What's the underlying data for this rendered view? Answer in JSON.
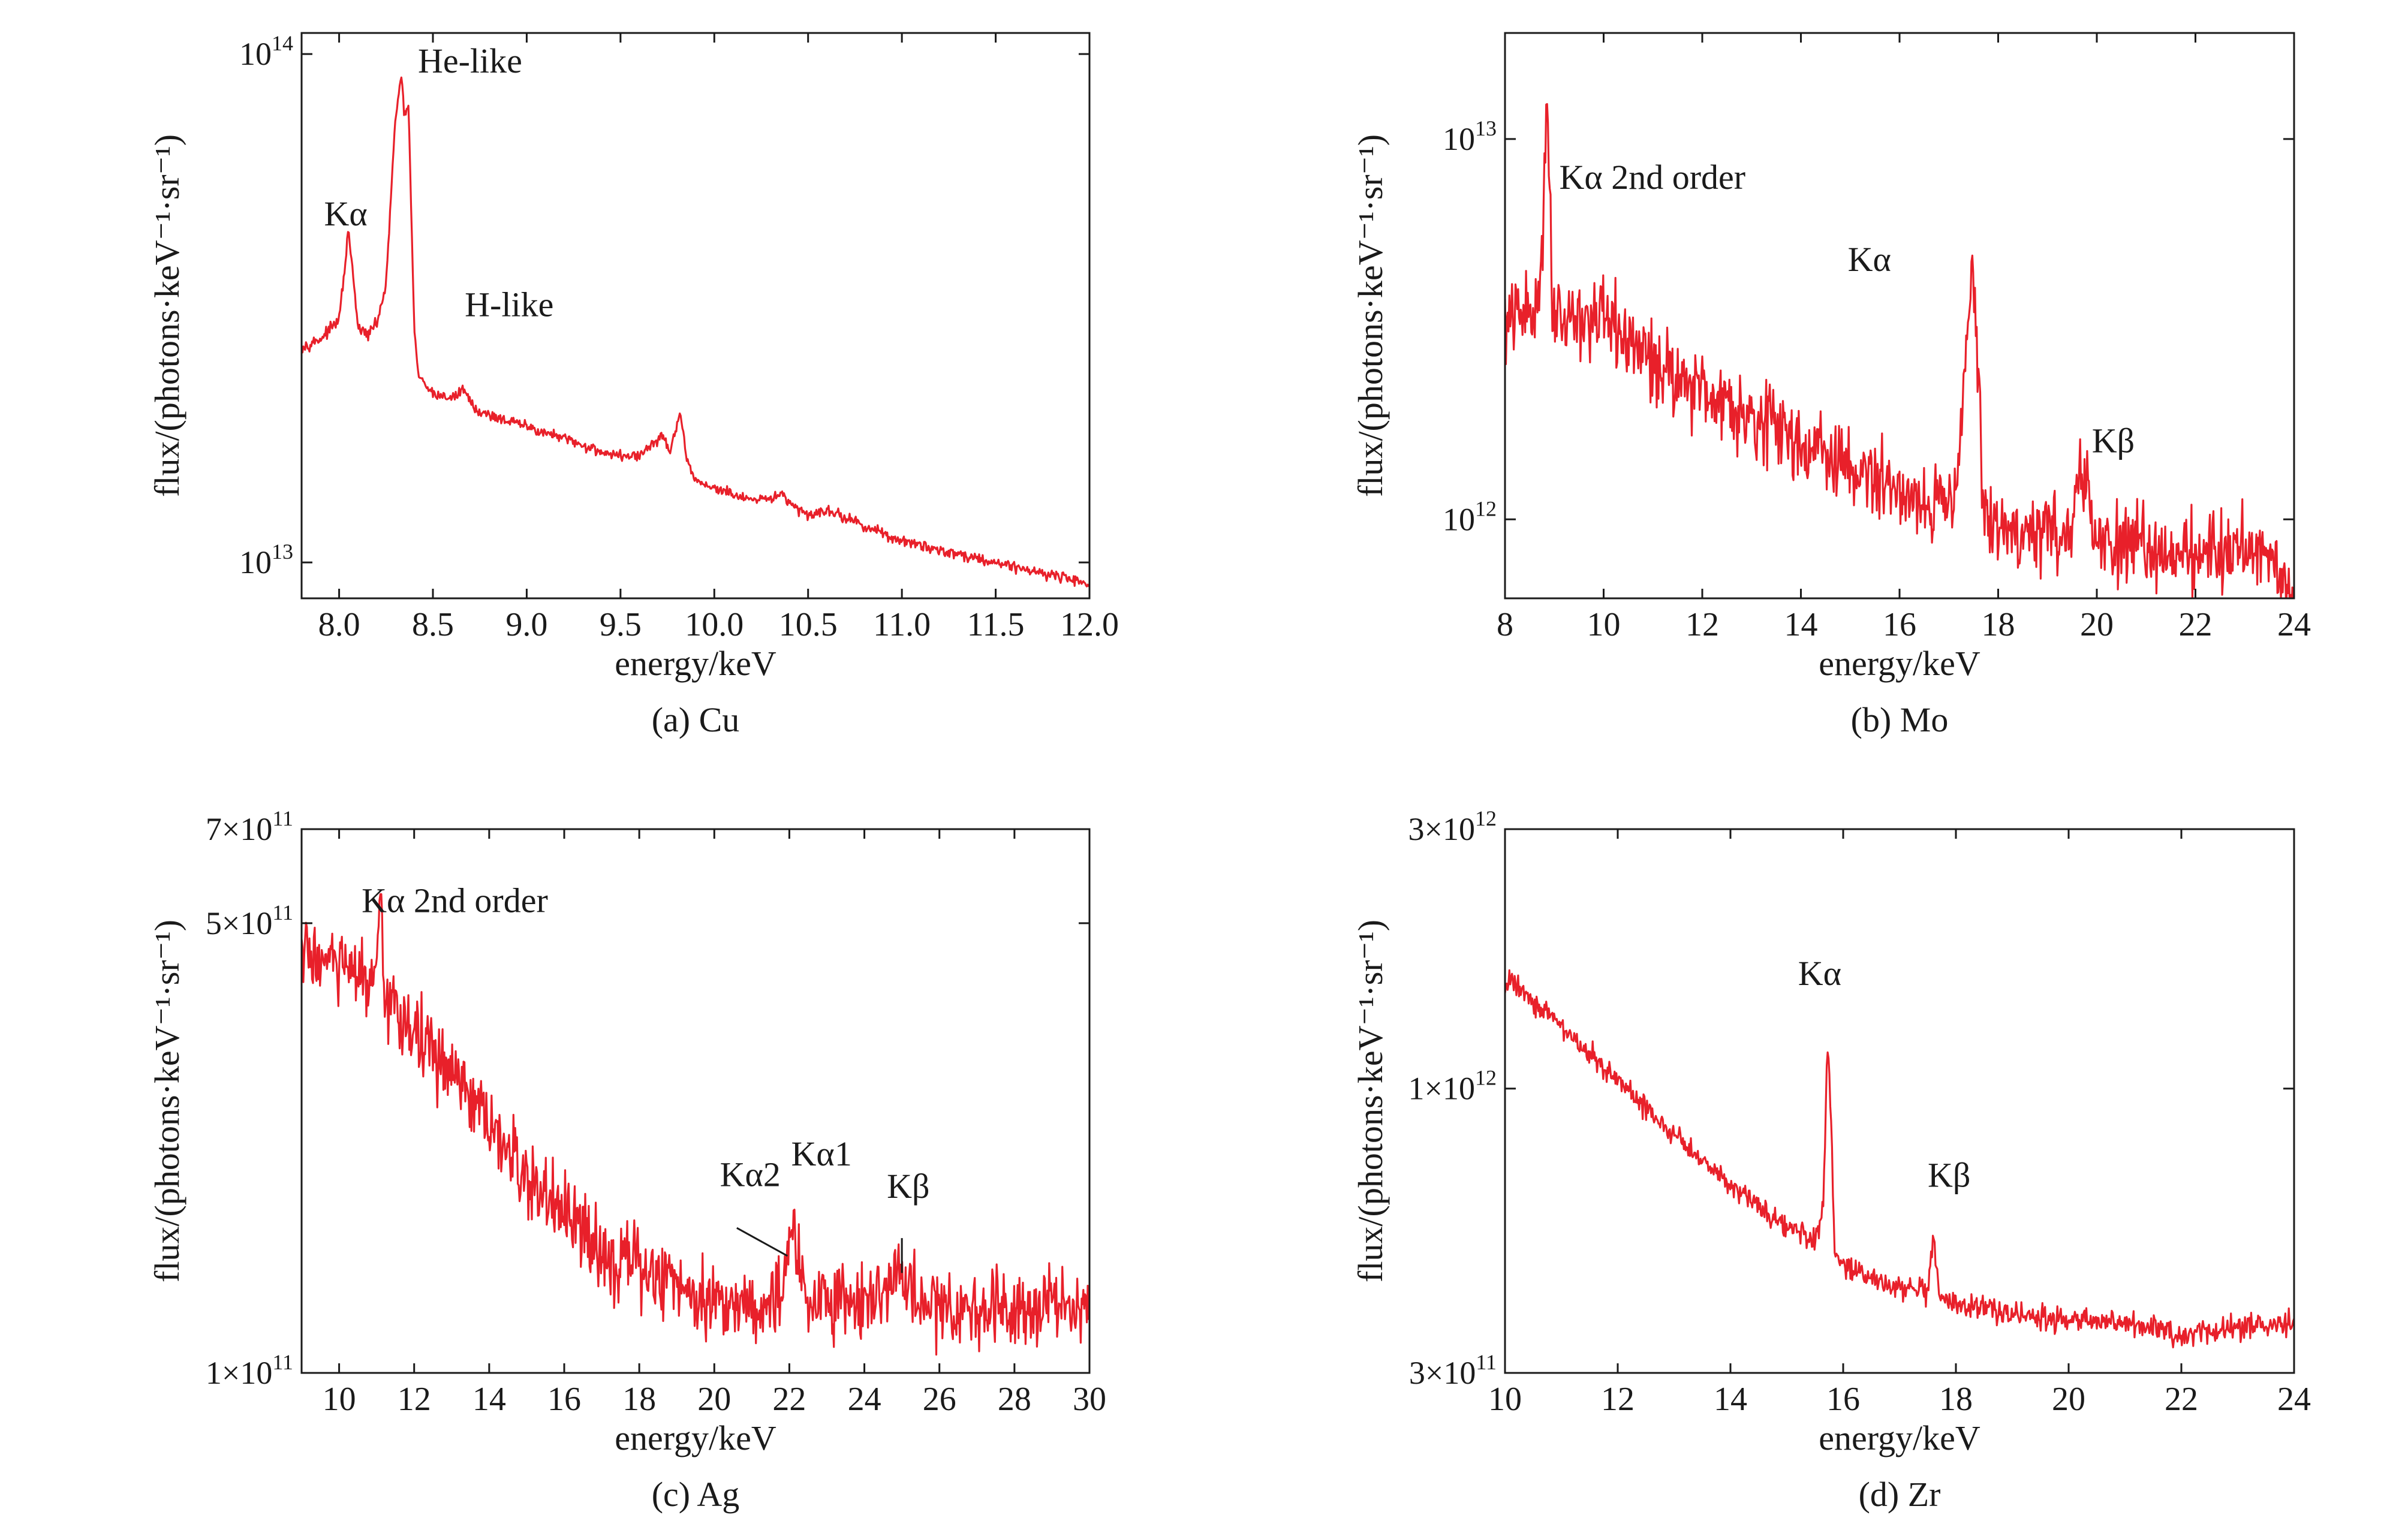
{
  "chart_data": [
    {
      "id": "a",
      "type": "line",
      "caption": "(a) Cu",
      "xlabel": "energy/keV",
      "ylabel": "flux/(photons·keV⁻¹·sr⁻¹)",
      "xlim": [
        7.8,
        12.0
      ],
      "ylim": [
        8500000000000.0,
        110000000000000.0
      ],
      "yscale": "log",
      "xticks": [
        8.0,
        8.5,
        9.0,
        9.5,
        10.0,
        10.5,
        11.0,
        11.5,
        12.0
      ],
      "xtick_labels": [
        "8.0",
        "8.5",
        "9.0",
        "9.5",
        "10.0",
        "10.5",
        "11.0",
        "11.5",
        "12.0"
      ],
      "yticks": [
        {
          "value": 10000000000000.0,
          "mant": "10",
          "exp": "13"
        },
        {
          "value": 100000000000000.0,
          "mant": "10",
          "exp": "14"
        }
      ],
      "color": "#e8202a",
      "noise": 0.012,
      "annotations": [
        {
          "text": "Kα",
          "x": 7.92,
          "y": 46000000000000.0
        },
        {
          "text": "He-like",
          "x": 8.42,
          "y": 92000000000000.0
        },
        {
          "text": "H-like",
          "x": 8.67,
          "y": 30500000000000.0
        }
      ],
      "leaders": [],
      "series": [
        {
          "x": [
            7.8,
            7.9,
            8.0,
            8.03,
            8.05,
            8.07,
            8.1,
            8.15,
            8.2,
            8.25,
            8.28,
            8.3,
            8.33,
            8.35,
            8.37,
            8.4,
            8.42,
            8.45,
            8.5,
            8.6,
            8.67,
            8.72,
            8.8,
            9.0,
            9.2,
            9.4,
            9.5,
            9.6,
            9.68,
            9.72,
            9.76,
            9.8,
            9.82,
            9.85,
            9.9,
            10.0,
            10.2,
            10.3,
            10.35,
            10.4,
            10.5,
            10.6,
            10.8,
            11.0,
            11.5,
            12.0
          ],
          "y": [
            26500000000000.0,
            27500000000000.0,
            30000000000000.0,
            38000000000000.0,
            45000000000000.0,
            38000000000000.0,
            29000000000000.0,
            28000000000000.0,
            29500000000000.0,
            35000000000000.0,
            55000000000000.0,
            75000000000000.0,
            90000000000000.0,
            75000000000000.0,
            80000000000000.0,
            29000000000000.0,
            23500000000000.0,
            22500000000000.0,
            21500000000000.0,
            21000000000000.0,
            22000000000000.0,
            20000000000000.0,
            19500000000000.0,
            18500000000000.0,
            17500000000000.0,
            16500000000000.0,
            16200000000000.0,
            16200000000000.0,
            17200000000000.0,
            17800000000000.0,
            16500000000000.0,
            18500000000000.0,
            19500000000000.0,
            16000000000000.0,
            14500000000000.0,
            14000000000000.0,
            13200000000000.0,
            13300000000000.0,
            13800000000000.0,
            13000000000000.0,
            12400000000000.0,
            12700000000000.0,
            11800000000000.0,
            11000000000000.0,
            10000000000000.0,
            9100000000000.0
          ]
        }
      ]
    },
    {
      "id": "b",
      "type": "line",
      "caption": "(b) Mo",
      "xlabel": "energy/keV",
      "ylabel": "flux/(photons·keV⁻¹·sr⁻¹)",
      "xlim": [
        8,
        24
      ],
      "ylim": [
        620000000000.0,
        19000000000000.0
      ],
      "yscale": "log",
      "xticks": [
        8,
        10,
        12,
        14,
        16,
        18,
        20,
        22,
        24
      ],
      "xtick_labels": [
        "8",
        "10",
        "12",
        "14",
        "16",
        "18",
        "20",
        "22",
        "24"
      ],
      "yticks": [
        {
          "value": 1000000000000.0,
          "mant": "10",
          "exp": "12"
        },
        {
          "value": 10000000000000.0,
          "mant": "10",
          "exp": "13"
        }
      ],
      "color": "#e8202a",
      "noise": 0.12,
      "annotations": [
        {
          "text": "Kα 2nd order",
          "x": 9.1,
          "y": 7400000000000.0
        },
        {
          "text": "Kα",
          "x": 14.95,
          "y": 4500000000000.0
        },
        {
          "text": "Kβ",
          "x": 19.9,
          "y": 1500000000000.0
        }
      ],
      "leaders": [],
      "series": [
        {
          "x": [
            8.0,
            8.2,
            8.4,
            8.6,
            8.75,
            8.85,
            8.95,
            9.1,
            9.5,
            10.0,
            11.0,
            12.0,
            13.0,
            14.0,
            15.0,
            16.0,
            16.8,
            17.1,
            17.3,
            17.45,
            17.55,
            17.7,
            18.0,
            18.5,
            19.0,
            19.5,
            19.65,
            19.75,
            19.9,
            20.5,
            21.0,
            22.0,
            23.0,
            23.5,
            24.0
          ],
          "y": [
            3200000000000.0,
            3400000000000.0,
            3500000000000.0,
            3400000000000.0,
            5000000000000.0,
            14000000000000.0,
            4000000000000.0,
            3500000000000.0,
            3400000000000.0,
            3300000000000.0,
            2600000000000.0,
            2200000000000.0,
            1900000000000.0,
            1600000000000.0,
            1350000000000.0,
            1200000000000.0,
            1080000000000.0,
            1200000000000.0,
            2200000000000.0,
            4800000000000.0,
            3000000000000.0,
            1050000000000.0,
            950000000000.0,
            920000000000.0,
            930000000000.0,
            940000000000.0,
            1350000000000.0,
            1300000000000.0,
            900000000000.0,
            850000000000.0,
            840000000000.0,
            820000000000.0,
            850000000000.0,
            820000000000.0,
            640000000000.0
          ]
        }
      ]
    },
    {
      "id": "c",
      "type": "line",
      "caption": "(c) Ag",
      "xlabel": "energy/keV",
      "ylabel": "flux/(photons·keV⁻¹·sr⁻¹)",
      "xlim": [
        9,
        30
      ],
      "ylim": [
        100000000000.0,
        700000000000.0
      ],
      "yscale": "log",
      "xticks": [
        10,
        12,
        14,
        16,
        18,
        20,
        22,
        24,
        26,
        28,
        30
      ],
      "xtick_labels": [
        "10",
        "12",
        "14",
        "16",
        "18",
        "20",
        "22",
        "24",
        "26",
        "28",
        "30"
      ],
      "yticks": [
        {
          "value": 100000000000.0,
          "mant": "1×10",
          "exp": "11"
        },
        {
          "value": 500000000000.0,
          "mant": "5×10",
          "exp": "11"
        },
        {
          "value": 700000000000.0,
          "mant": "7×10",
          "exp": "11"
        }
      ],
      "color": "#e8202a",
      "noise": 0.07,
      "annotations": [
        {
          "text": "Kα 2nd order",
          "x": 10.6,
          "y": 520000000000.0
        },
        {
          "text": "Kα2",
          "x": 20.15,
          "y": 195000000000.0
        },
        {
          "text": "Kα1",
          "x": 22.05,
          "y": 210000000000.0
        },
        {
          "text": "Kβ",
          "x": 24.6,
          "y": 187000000000.0
        }
      ],
      "leaders": [
        {
          "x1": 20.6,
          "y1": 168000000000.0,
          "x2": 21.95,
          "y2": 152000000000.0
        },
        {
          "x1": 25.0,
          "y1": 162000000000.0,
          "x2": 25.0,
          "y2": 143000000000.0
        }
      ],
      "series": [
        {
          "x": [
            9.0,
            9.5,
            10.0,
            10.5,
            11.0,
            11.1,
            11.2,
            11.5,
            12.0,
            13.0,
            14.0,
            15.0,
            16.0,
            17.0,
            18.0,
            19.0,
            20.0,
            21.0,
            21.8,
            22.0,
            22.15,
            22.3,
            22.6,
            23.5,
            24.5,
            24.9,
            25.1,
            25.5,
            26.0,
            27.0,
            28.0,
            29.0,
            30.0
          ],
          "y": [
            450000000000.0,
            440000000000.0,
            430000000000.0,
            410000000000.0,
            400000000000.0,
            530000000000.0,
            380000000000.0,
            370000000000.0,
            340000000000.0,
            290000000000.0,
            240000000000.0,
            200000000000.0,
            175000000000.0,
            155000000000.0,
            145000000000.0,
            138000000000.0,
            130000000000.0,
            128000000000.0,
            130000000000.0,
            155000000000.0,
            178000000000.0,
            135000000000.0,
            130000000000.0,
            130000000000.0,
            132000000000.0,
            145000000000.0,
            136000000000.0,
            128000000000.0,
            127000000000.0,
            126000000000.0,
            128000000000.0,
            130000000000.0,
            128000000000.0
          ]
        }
      ]
    },
    {
      "id": "d",
      "type": "line",
      "caption": "(d) Zr",
      "xlabel": "energy/keV",
      "ylabel": "flux/(photons·keV⁻¹·sr⁻¹)",
      "xlim": [
        10,
        24
      ],
      "ylim": [
        300000000000.0,
        3000000000000.0
      ],
      "yscale": "log",
      "xticks": [
        10,
        12,
        14,
        16,
        18,
        20,
        22,
        24
      ],
      "xtick_labels": [
        "10",
        "12",
        "14",
        "16",
        "18",
        "20",
        "22",
        "24"
      ],
      "yticks": [
        {
          "value": 300000000000.0,
          "mant": "3×10",
          "exp": "11"
        },
        {
          "value": 1000000000000.0,
          "mant": "1×10",
          "exp": "12"
        },
        {
          "value": 3000000000000.0,
          "mant": "3×10",
          "exp": "12"
        }
      ],
      "color": "#e8202a",
      "noise": 0.025,
      "annotations": [
        {
          "text": "Kα",
          "x": 15.2,
          "y": 1550000000000.0
        },
        {
          "text": "Kβ",
          "x": 17.5,
          "y": 660000000000.0
        }
      ],
      "leaders": [],
      "series": [
        {
          "x": [
            10.0,
            10.1,
            10.5,
            11.0,
            11.5,
            12.0,
            12.5,
            13.0,
            13.5,
            14.0,
            14.5,
            15.0,
            15.5,
            15.65,
            15.72,
            15.78,
            15.85,
            16.0,
            16.5,
            17.0,
            17.5,
            17.6,
            17.7,
            18.0,
            18.5,
            19.0,
            20.0,
            21.0,
            21.5,
            22.0,
            22.5,
            23.0,
            23.5,
            24.0
          ],
          "y": [
            1500000000000.0,
            1600000000000.0,
            1450000000000.0,
            1300000000000.0,
            1160000000000.0,
            1030000000000.0,
            920000000000.0,
            820000000000.0,
            740000000000.0,
            670000000000.0,
            610000000000.0,
            560000000000.0,
            520000000000.0,
            600000000000.0,
            1250000000000.0,
            900000000000.0,
            490000000000.0,
            470000000000.0,
            450000000000.0,
            430000000000.0,
            420000000000.0,
            530000000000.0,
            410000000000.0,
            400000000000.0,
            395000000000.0,
            385000000000.0,
            375000000000.0,
            370000000000.0,
            360000000000.0,
            350000000000.0,
            360000000000.0,
            365000000000.0,
            365000000000.0,
            370000000000.0
          ]
        }
      ]
    }
  ]
}
